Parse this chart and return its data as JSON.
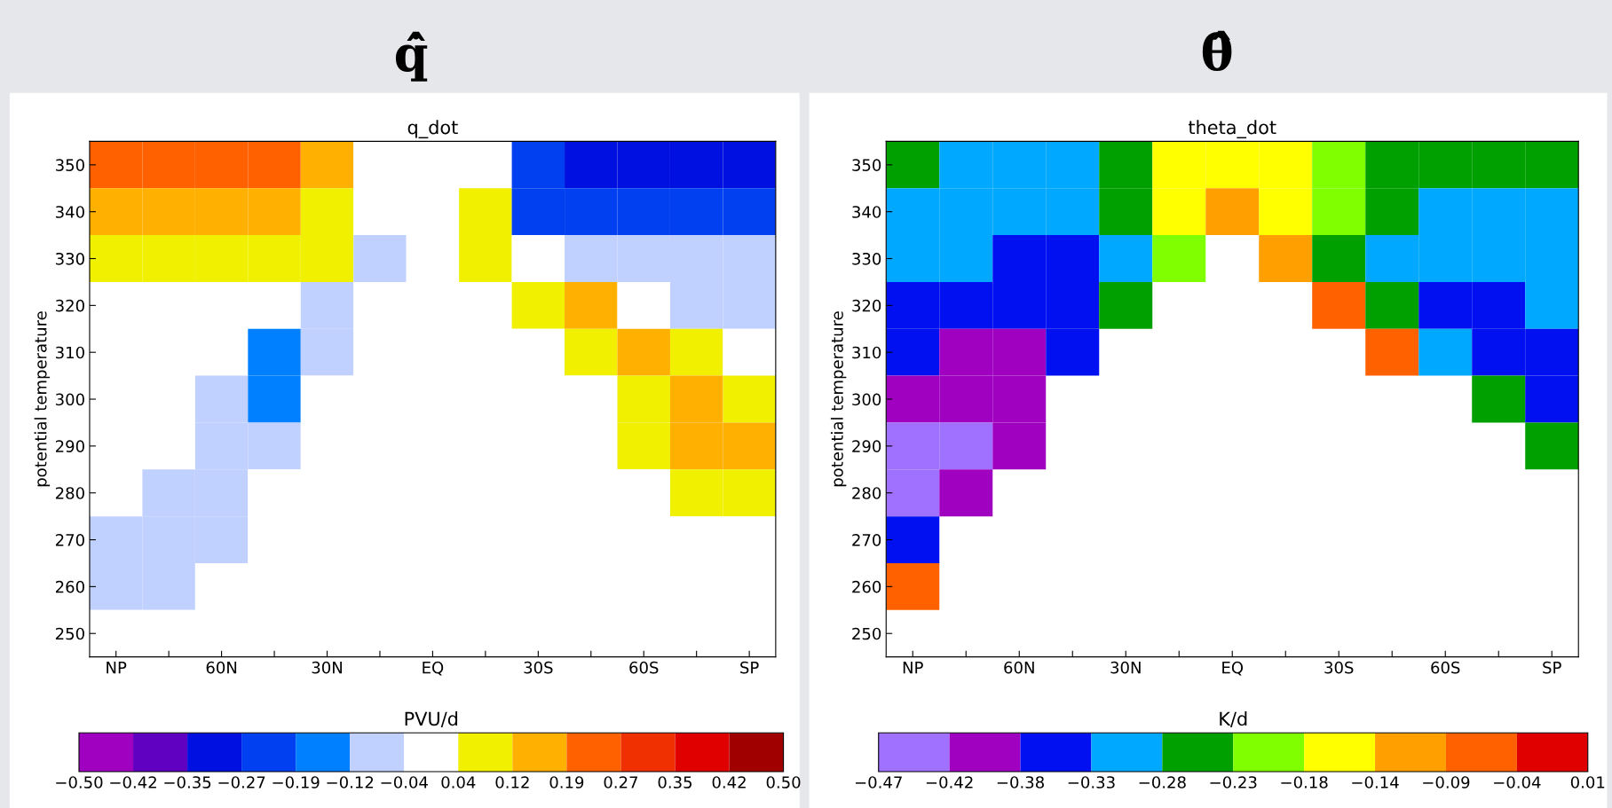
{
  "chart_data": [
    {
      "type": "heatmap",
      "title": "q̇̂",
      "subtitle": "q_dot",
      "ylabel": "potential temperature",
      "clabel": "PVU/d",
      "categories": [
        "NP",
        null,
        "60N",
        null,
        "30N",
        null,
        "EQ",
        null,
        "30S",
        null,
        "60S",
        null,
        "SP"
      ],
      "y_categories": [
        "350",
        "340",
        "330",
        "320",
        "310",
        "300",
        "290",
        "280",
        "270",
        "260",
        "250"
      ],
      "cells": [
        [
          0.23,
          0.23,
          0.23,
          0.23,
          0.155,
          0,
          0,
          0,
          -0.23,
          -0.31,
          -0.31,
          -0.31,
          -0.31
        ],
        [
          0.155,
          0.155,
          0.155,
          0.155,
          0.08,
          0,
          0,
          0.08,
          -0.23,
          -0.23,
          -0.23,
          -0.23,
          -0.23
        ],
        [
          0.08,
          0.08,
          0.08,
          0.08,
          0.08,
          -0.08,
          0,
          0.08,
          0,
          -0.08,
          -0.08,
          -0.08,
          -0.08
        ],
        [
          0,
          0,
          0,
          0,
          -0.08,
          0,
          0,
          0,
          0.08,
          0.155,
          0,
          -0.08,
          -0.08
        ],
        [
          0,
          0,
          0,
          -0.155,
          -0.08,
          0,
          0,
          0,
          0,
          0.08,
          0.155,
          0.08,
          0
        ],
        [
          0,
          0,
          -0.08,
          -0.155,
          0,
          0,
          0,
          0,
          0,
          0,
          0.08,
          0.155,
          0.08
        ],
        [
          0,
          0,
          -0.08,
          -0.08,
          0,
          0,
          0,
          0,
          0,
          0,
          0.08,
          0.155,
          0.155
        ],
        [
          0,
          -0.08,
          -0.08,
          0,
          0,
          0,
          0,
          0,
          0,
          0,
          0,
          0.08,
          0.08
        ],
        [
          -0.08,
          -0.08,
          -0.08,
          0,
          0,
          0,
          0,
          0,
          0,
          0,
          0,
          0,
          0
        ],
        [
          -0.08,
          -0.08,
          0,
          0,
          0,
          0,
          0,
          0,
          0,
          0,
          0,
          0,
          0
        ],
        [
          0,
          0,
          0,
          0,
          0,
          0,
          0,
          0,
          0,
          0,
          0,
          0,
          0
        ]
      ],
      "clim": [
        -0.5,
        0.5
      ],
      "cticks": [
        {
          "value": -0.5,
          "label": "−0.50"
        },
        {
          "value": -0.42,
          "label": "−0.42"
        },
        {
          "value": -0.35,
          "label": "−0.35"
        },
        {
          "value": -0.27,
          "label": "−0.27"
        },
        {
          "value": -0.19,
          "label": "−0.19"
        },
        {
          "value": -0.12,
          "label": "−0.12"
        },
        {
          "value": -0.04,
          "label": "−0.04"
        },
        {
          "value": 0.04,
          "label": "0.04"
        },
        {
          "value": 0.12,
          "label": "0.12"
        },
        {
          "value": 0.19,
          "label": "0.19"
        },
        {
          "value": 0.27,
          "label": "0.27"
        },
        {
          "value": 0.35,
          "label": "0.35"
        },
        {
          "value": 0.42,
          "label": "0.42"
        },
        {
          "value": 0.5,
          "label": "0.50"
        }
      ],
      "colors": [
        "#a000c0",
        "#6000c0",
        "#0010e0",
        "#0040f0",
        "#0080ff",
        "#c0d0ff",
        "#ffffff",
        "#f0f000",
        "#ffb000",
        "#ff6000",
        "#f03000",
        "#e00000",
        "#a00000"
      ]
    },
    {
      "type": "heatmap",
      "title": "θ̇̂",
      "subtitle": "theta_dot",
      "ylabel": "potential temperature",
      "clabel": "K/d",
      "categories": [
        "NP",
        null,
        "60N",
        null,
        "30N",
        null,
        "EQ",
        null,
        "30S",
        null,
        "60S",
        null,
        "SP"
      ],
      "y_categories": [
        "350",
        "340",
        "330",
        "320",
        "310",
        "300",
        "290",
        "280",
        "270",
        "260",
        "250"
      ],
      "cells": [
        [
          -0.255,
          -0.305,
          -0.305,
          -0.305,
          -0.255,
          -0.16,
          -0.16,
          -0.16,
          -0.205,
          -0.255,
          -0.255,
          -0.255,
          -0.255
        ],
        [
          -0.305,
          -0.305,
          -0.305,
          -0.305,
          -0.255,
          -0.16,
          -0.115,
          -0.16,
          -0.205,
          -0.255,
          -0.305,
          -0.305,
          -0.305
        ],
        [
          -0.305,
          -0.305,
          -0.355,
          -0.355,
          -0.305,
          -0.205,
          null,
          -0.115,
          -0.255,
          -0.305,
          -0.305,
          -0.305,
          -0.305
        ],
        [
          -0.355,
          -0.355,
          -0.355,
          -0.355,
          -0.255,
          null,
          null,
          null,
          -0.065,
          -0.255,
          -0.355,
          -0.355,
          -0.305
        ],
        [
          -0.355,
          -0.4,
          -0.4,
          -0.355,
          null,
          null,
          null,
          null,
          null,
          -0.065,
          -0.305,
          -0.355,
          -0.355
        ],
        [
          -0.4,
          -0.4,
          -0.4,
          null,
          null,
          null,
          null,
          null,
          null,
          null,
          null,
          -0.255,
          -0.355
        ],
        [
          -0.445,
          -0.445,
          -0.4,
          null,
          null,
          null,
          null,
          null,
          null,
          null,
          null,
          null,
          -0.255
        ],
        [
          -0.445,
          -0.4,
          null,
          null,
          null,
          null,
          null,
          null,
          null,
          null,
          null,
          null,
          null
        ],
        [
          -0.355,
          null,
          null,
          null,
          null,
          null,
          null,
          null,
          null,
          null,
          null,
          null,
          null
        ],
        [
          -0.065,
          null,
          null,
          null,
          null,
          null,
          null,
          null,
          null,
          null,
          null,
          null,
          null
        ],
        [
          null,
          null,
          null,
          null,
          null,
          null,
          null,
          null,
          null,
          null,
          null,
          null,
          null
        ]
      ],
      "clim": [
        -0.47,
        0.01
      ],
      "cticks": [
        {
          "value": -0.47,
          "label": "−0.47"
        },
        {
          "value": -0.42,
          "label": "−0.42"
        },
        {
          "value": -0.38,
          "label": "−0.38"
        },
        {
          "value": -0.33,
          "label": "−0.33"
        },
        {
          "value": -0.28,
          "label": "−0.28"
        },
        {
          "value": -0.23,
          "label": "−0.23"
        },
        {
          "value": -0.18,
          "label": "−0.18"
        },
        {
          "value": -0.14,
          "label": "−0.14"
        },
        {
          "value": -0.09,
          "label": "−0.09"
        },
        {
          "value": -0.04,
          "label": "−0.04"
        },
        {
          "value": 0.01,
          "label": "0.01"
        }
      ],
      "colors": [
        "#a070ff",
        "#a000c0",
        "#0010f0",
        "#00a8ff",
        "#00a000",
        "#80ff00",
        "#ffff00",
        "#ffa000",
        "#ff6000",
        "#e00000"
      ]
    }
  ]
}
